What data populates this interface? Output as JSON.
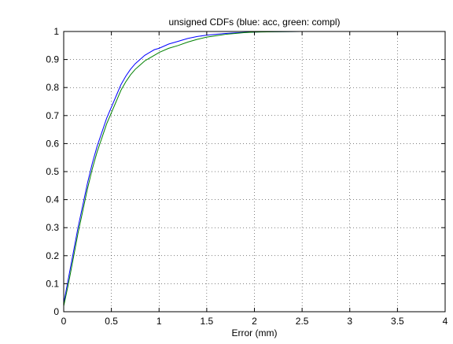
{
  "chart_data": {
    "type": "line",
    "title": "unsigned CDFs (blue: acc, green: compl)",
    "xlabel": "Error (mm)",
    "ylabel": "",
    "xlim": [
      0,
      4
    ],
    "ylim": [
      0,
      1
    ],
    "xticks": [
      "0",
      "0.5",
      "1",
      "1.5",
      "2",
      "2.5",
      "3",
      "3.5",
      "4"
    ],
    "yticks": [
      "0",
      "0.1",
      "0.2",
      "0.3",
      "0.4",
      "0.5",
      "0.6",
      "0.7",
      "0.8",
      "0.9",
      "1"
    ],
    "grid": true,
    "legend": "none",
    "series": [
      {
        "color": "#0000ff",
        "x": [
          0.0,
          0.05,
          0.1,
          0.15,
          0.2,
          0.25,
          0.3,
          0.35,
          0.4,
          0.45,
          0.5,
          0.55,
          0.6,
          0.65,
          0.7,
          0.75,
          0.8,
          0.85,
          0.9,
          0.95,
          1.0,
          1.1,
          1.2,
          1.3,
          1.4,
          1.5,
          1.6,
          1.7,
          1.8,
          1.9,
          2.0,
          2.1,
          2.5,
          3.0,
          3.5
        ],
        "y": [
          0.03,
          0.12,
          0.21,
          0.3,
          0.38,
          0.46,
          0.53,
          0.59,
          0.64,
          0.69,
          0.73,
          0.77,
          0.81,
          0.84,
          0.865,
          0.885,
          0.9,
          0.915,
          0.925,
          0.935,
          0.94,
          0.955,
          0.965,
          0.975,
          0.982,
          0.987,
          0.99,
          0.993,
          0.995,
          0.997,
          0.998,
          0.999,
          1.0,
          1.0,
          1.0
        ]
      },
      {
        "color": "#008000",
        "x": [
          0.0,
          0.05,
          0.1,
          0.15,
          0.2,
          0.25,
          0.3,
          0.35,
          0.4,
          0.45,
          0.5,
          0.55,
          0.6,
          0.65,
          0.7,
          0.75,
          0.8,
          0.85,
          0.9,
          0.95,
          1.0,
          1.1,
          1.2,
          1.3,
          1.4,
          1.5,
          1.6,
          1.7,
          1.8,
          1.9,
          2.0,
          2.2,
          2.5
        ],
        "y": [
          0.02,
          0.1,
          0.19,
          0.28,
          0.36,
          0.44,
          0.51,
          0.57,
          0.62,
          0.67,
          0.71,
          0.75,
          0.79,
          0.82,
          0.845,
          0.865,
          0.88,
          0.895,
          0.905,
          0.915,
          0.925,
          0.94,
          0.95,
          0.962,
          0.972,
          0.98,
          0.985,
          0.99,
          0.993,
          0.996,
          0.998,
          0.999,
          1.0
        ]
      }
    ]
  }
}
